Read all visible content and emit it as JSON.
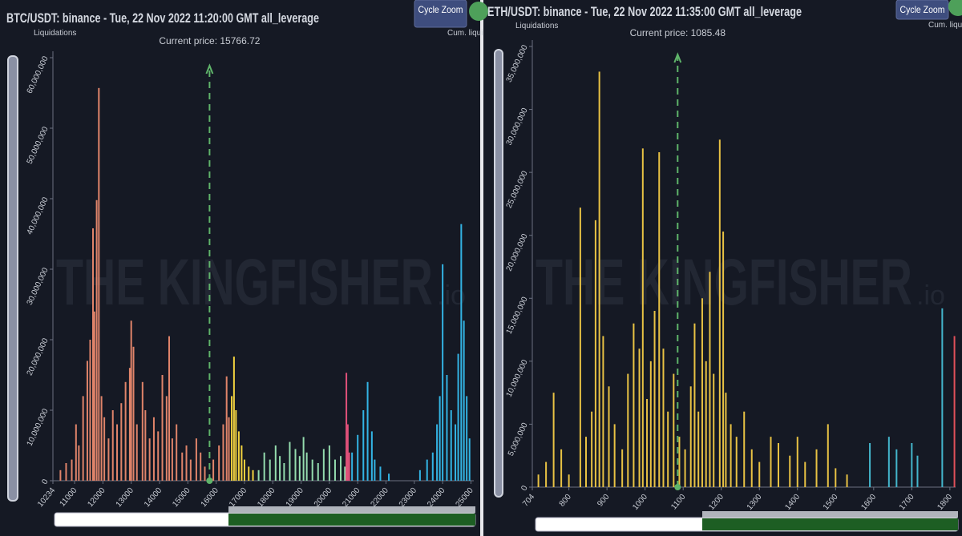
{
  "chart_data": [
    {
      "type": "bar",
      "title": "BTC/USDT: binance - Tue, 22 Nov 2022 11:20:00 GMT all_leverage",
      "ylabel": "Liquidations",
      "zoom_button": "Cycle Zoom",
      "cumulative_label": "Cum. liqui",
      "current_price": 15766.72,
      "current_price_label": "Current price: 15766.72",
      "watermark": "THE KINGFISHER",
      "watermark_suffix": ".io",
      "xlim": [
        10234,
        25100
      ],
      "xticks": [
        10234,
        11000,
        12000,
        13000,
        14000,
        15000,
        16000,
        17000,
        18000,
        19000,
        20000,
        21000,
        22000,
        23000,
        24000,
        25000
      ],
      "ylim": [
        0,
        60000000
      ],
      "yticks": [
        0,
        {
          "value": 10000000,
          "label": "10,000,000"
        },
        {
          "value": 20000000,
          "label": "20,000,000"
        },
        {
          "value": 30000000,
          "label": "30,000,000"
        },
        {
          "value": 40000000,
          "label": "40,000,000"
        },
        {
          "value": 50000000,
          "label": "50,000,000"
        },
        {
          "value": 60000000,
          "label": "60,000,000"
        }
      ],
      "series": [
        {
          "color": "#e0846a",
          "x": [
            10500,
            10700,
            10900,
            11050,
            11150,
            11300,
            11450,
            11550,
            11650,
            11700,
            11780,
            11857,
            11950,
            12050,
            12200,
            12350,
            12500,
            12650,
            12800,
            12950,
            13000,
            13080,
            13200,
            13400,
            13500,
            13650,
            13800,
            13950,
            14100,
            14250,
            14340,
            14450,
            14600,
            14800,
            14950,
            15100,
            15300,
            15450,
            15600,
            15900,
            16100,
            16250,
            16370,
            16450
          ],
          "values": [
            1500000,
            2500000,
            3000000,
            8000000,
            5000000,
            12000000,
            17000000,
            20000000,
            35800000,
            24000000,
            39800000,
            55700000,
            12000000,
            9000000,
            6000000,
            10000000,
            8000000,
            11000000,
            14000000,
            16000000,
            22700000,
            19000000,
            8000000,
            14000000,
            10000000,
            6000000,
            9000000,
            7000000,
            15000000,
            12000000,
            20500000,
            6000000,
            8000000,
            4000000,
            5000000,
            3000000,
            6000000,
            4000000,
            2000000,
            3000000,
            5000000,
            8000000,
            14800000,
            9000000
          ]
        },
        {
          "color": "#f2d33f",
          "x": [
            16550,
            16630,
            16700,
            16800,
            16900,
            17000,
            17150,
            17300
          ],
          "values": [
            12000000,
            17600000,
            10000000,
            7000000,
            5000000,
            3000000,
            2000000,
            1500000
          ]
        },
        {
          "color": "#94dcae",
          "x": [
            17500,
            17700,
            17900,
            18100,
            18250,
            18400,
            18600,
            18800,
            18950,
            19086,
            19200,
            19400,
            19600,
            19800,
            20000,
            20200,
            20400,
            20550
          ],
          "values": [
            1500000,
            4000000,
            3000000,
            5000000,
            3500000,
            2500000,
            5500000,
            4500000,
            3500000,
            6200000,
            4000000,
            3000000,
            2500000,
            4500000,
            5000000,
            3000000,
            3500000,
            2000000
          ]
        },
        {
          "color": "#e0507a",
          "x": [
            20600,
            20650,
            20700
          ],
          "values": [
            15300000,
            8000000,
            4000000
          ]
        },
        {
          "color": "#33b4e4",
          "x": [
            20800,
            21000,
            21200,
            21350,
            21500,
            21600,
            21800,
            22100,
            23200,
            23450,
            23650,
            23800,
            23900,
            24000,
            24150,
            24300,
            24450,
            24550,
            24657,
            24750,
            24850,
            24950
          ],
          "values": [
            4000000,
            6500000,
            10000000,
            14000000,
            7000000,
            3000000,
            2000000,
            1000000,
            1500000,
            3000000,
            4000000,
            8000000,
            12000000,
            30700000,
            15000000,
            10000000,
            8000000,
            18000000,
            36400000,
            22700000,
            12000000,
            6000000
          ]
        }
      ]
    },
    {
      "type": "bar",
      "title": "ETH/USDT: binance - Tue, 22 Nov 2022 11:35:00 GMT all_leverage",
      "ylabel": "Liquidations",
      "zoom_button": "Cycle Zoom",
      "cumulative_label": "Cum. liqui",
      "current_price": 1085.48,
      "current_price_label": "Current price: 1085.48",
      "watermark": "THE KINGFISHER",
      "watermark_suffix": ".io",
      "xlim": [
        704,
        1815
      ],
      "xticks": [
        704,
        800,
        900,
        1000,
        1100,
        1200,
        1300,
        1400,
        1500,
        1600,
        1700,
        1800
      ],
      "ylim": [
        0,
        35000000
      ],
      "yticks": [
        0,
        {
          "value": 5000000,
          "label": "5,000,000"
        },
        {
          "value": 10000000,
          "label": "10,000,000"
        },
        {
          "value": 15000000,
          "label": "15,000,000"
        },
        {
          "value": 20000000,
          "label": "20,000,000"
        },
        {
          "value": 25000000,
          "label": "25,000,000"
        },
        {
          "value": 30000000,
          "label": "30,000,000"
        },
        {
          "value": 35000000,
          "label": "35,000,000"
        }
      ],
      "series": [
        {
          "color": "#e8c244",
          "x": [
            720,
            740,
            760,
            780,
            800,
            830,
            845,
            860,
            870,
            880,
            890,
            905,
            920,
            940,
            955,
            970,
            985,
            994,
            1005,
            1015,
            1025,
            1037,
            1048,
            1060,
            1075,
            1090,
            1105,
            1120,
            1130,
            1140,
            1150,
            1160,
            1170,
            1180,
            1196,
            1205,
            1212,
            1225,
            1240,
            1260,
            1280,
            1300,
            1330,
            1350,
            1380,
            1400,
            1420,
            1450,
            1480,
            1500,
            1530
          ],
          "values": [
            1000000,
            2000000,
            7500000,
            3000000,
            1000000,
            22200000,
            4000000,
            6000000,
            21200000,
            33000000,
            12000000,
            8000000,
            5000000,
            3000000,
            9000000,
            13000000,
            11000000,
            26900000,
            7000000,
            10000000,
            14000000,
            26600000,
            11000000,
            6000000,
            9000000,
            4000000,
            3000000,
            8000000,
            13000000,
            6000000,
            15000000,
            10000000,
            17100000,
            9000000,
            27600000,
            20300000,
            7500000,
            5000000,
            4000000,
            6000000,
            3000000,
            2000000,
            4000000,
            3500000,
            2500000,
            4000000,
            2000000,
            3000000,
            5000000,
            1500000,
            1000000
          ]
        },
        {
          "color": "#44b6cc",
          "x": [
            1590,
            1640,
            1660,
            1700,
            1715,
            1780
          ],
          "values": [
            3500000,
            4000000,
            3000000,
            3500000,
            2500000,
            14200000
          ]
        },
        {
          "color": "#e0505a",
          "x": [
            1812
          ],
          "values": [
            12000000
          ]
        }
      ]
    }
  ]
}
